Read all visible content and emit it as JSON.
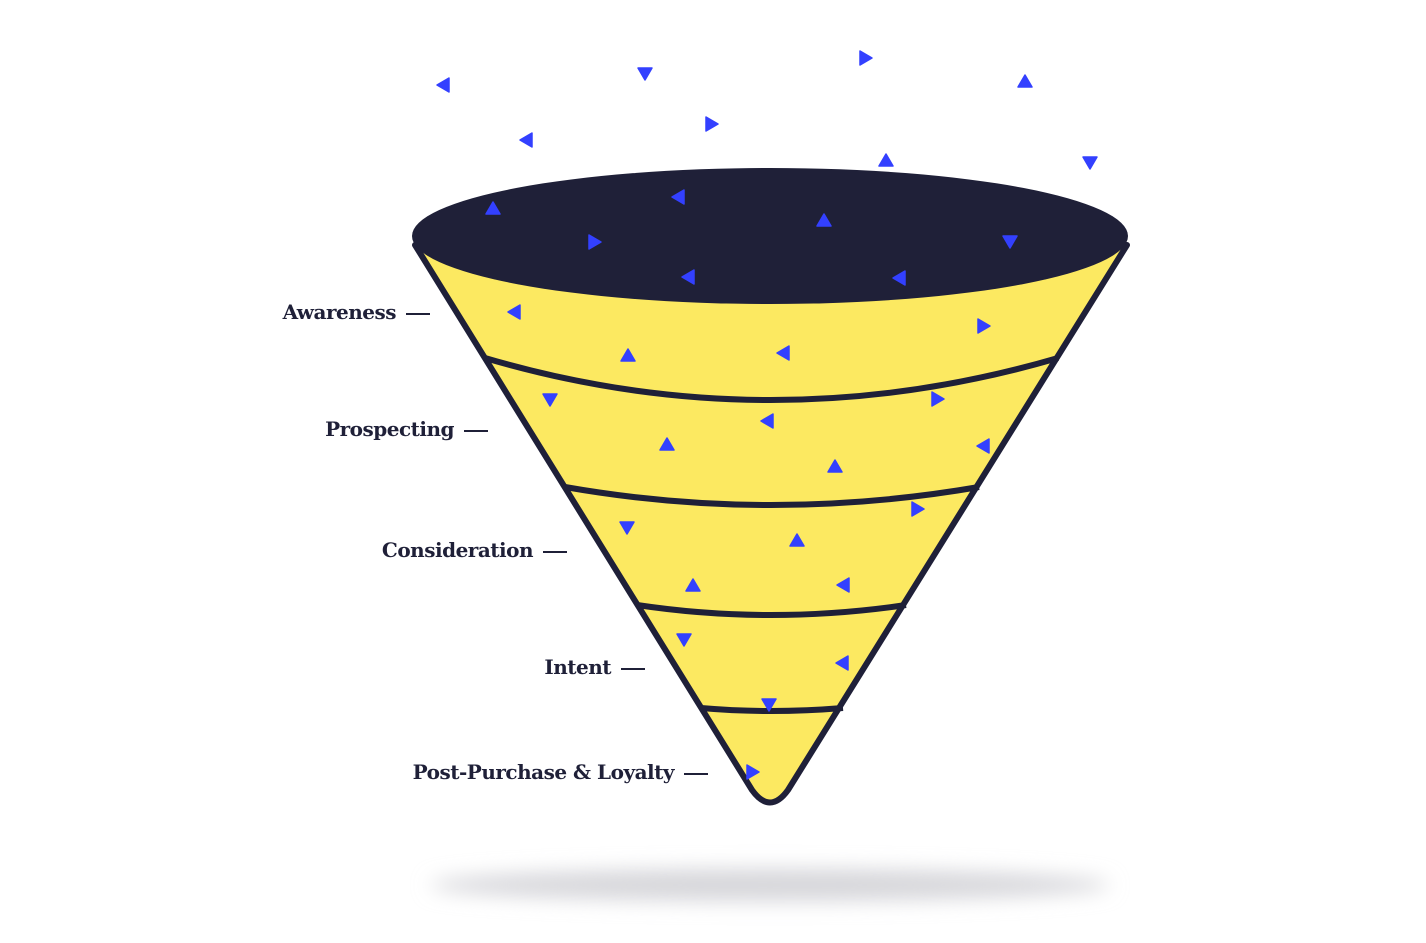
{
  "stages": [
    {
      "label": "Awareness"
    },
    {
      "label": "Prospecting"
    },
    {
      "label": "Consideration"
    },
    {
      "label": "Intent"
    },
    {
      "label": "Post-Purchase & Loyalty"
    }
  ],
  "colors": {
    "funnel_fill": "#fce961",
    "outline": "#1f2038",
    "particles": "#3340ff",
    "shadow": "#d6d6da"
  },
  "icons": {
    "particle": "triangle-icon"
  }
}
